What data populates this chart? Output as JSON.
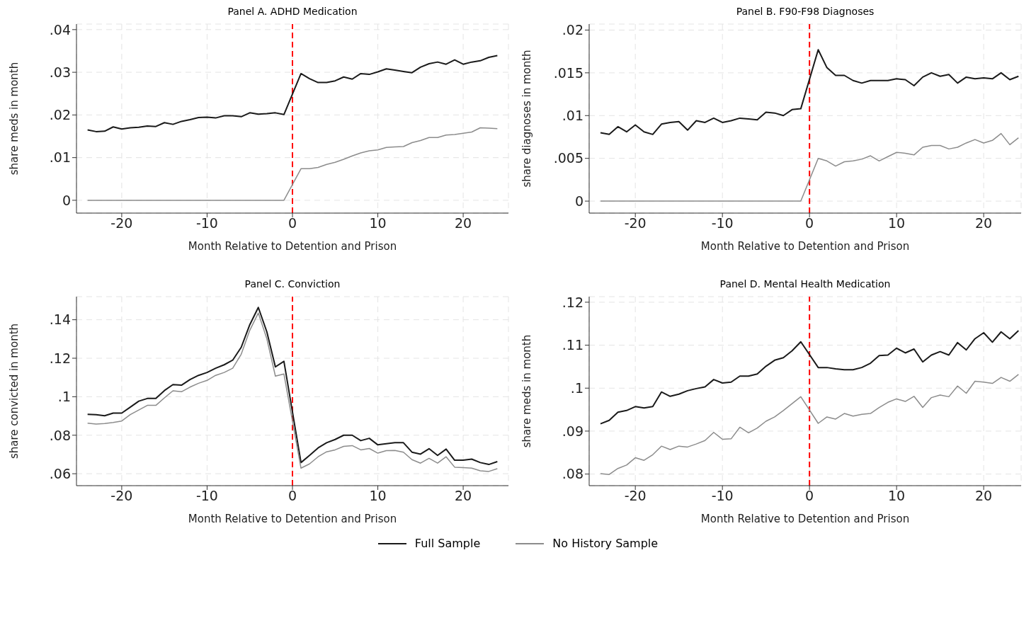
{
  "chart_data": [
    {
      "type": "line",
      "title": "Panel A. ADHD Medication",
      "xlabel": "Month Relative to Detention and Prison",
      "ylabel": "share meds in month",
      "x": [
        -24,
        -23,
        -22,
        -21,
        -20,
        -19,
        -18,
        -17,
        -16,
        -15,
        -14,
        -13,
        -12,
        -11,
        -10,
        -9,
        -8,
        -7,
        -6,
        -5,
        -4,
        -3,
        -2,
        -1,
        1,
        2,
        3,
        4,
        5,
        6,
        7,
        8,
        9,
        10,
        11,
        12,
        13,
        14,
        15,
        16,
        17,
        18,
        19,
        20,
        21,
        22,
        23,
        24
      ],
      "series": [
        {
          "name": "Full Sample",
          "color": "#1a1a1a",
          "values": [
            0.0165,
            0.0161,
            0.0162,
            0.0172,
            0.0167,
            0.017,
            0.0171,
            0.0174,
            0.0173,
            0.0182,
            0.0178,
            0.0185,
            0.0189,
            0.0194,
            0.0195,
            0.0193,
            0.0198,
            0.0198,
            0.0196,
            0.0205,
            0.0202,
            0.0203,
            0.0205,
            0.0201,
            0.0297,
            0.0285,
            0.0276,
            0.0276,
            0.028,
            0.0289,
            0.0284,
            0.0297,
            0.0295,
            0.0301,
            0.0308,
            0.0305,
            0.0302,
            0.0299,
            0.0312,
            0.032,
            0.0324,
            0.0319,
            0.0329,
            0.0319,
            0.0324,
            0.0327,
            0.0335,
            0.0339
          ]
        },
        {
          "name": "No History Sample",
          "color": "#8c8c8c",
          "values": [
            0,
            0,
            0,
            0,
            0,
            0,
            0,
            0,
            0,
            0,
            0,
            0,
            0,
            0,
            0,
            0,
            0,
            0,
            0,
            0,
            0,
            0,
            0,
            0,
            0.0074,
            0.0074,
            0.0077,
            0.0084,
            0.0089,
            0.0096,
            0.0104,
            0.0111,
            0.0116,
            0.0118,
            0.0124,
            0.0125,
            0.0126,
            0.0135,
            0.014,
            0.0147,
            0.0147,
            0.0153,
            0.0154,
            0.0157,
            0.016,
            0.017,
            0.0169,
            0.0168
          ]
        }
      ],
      "xlim": [
        -25.3,
        25.3
      ],
      "xticks": [
        -20,
        -10,
        0,
        10,
        20
      ],
      "ylim": [
        -0.003,
        0.0413
      ],
      "yticks": [
        {
          "value": 0,
          "label": "0"
        },
        {
          "value": 0.01,
          "label": ".01"
        },
        {
          "value": 0.02,
          "label": ".02"
        },
        {
          "value": 0.03,
          "label": ".03"
        },
        {
          "value": 0.04,
          "label": ".04"
        }
      ],
      "grid": true,
      "marker": "none",
      "legend": "bottom",
      "ref_lines": [
        {
          "axis": "x",
          "value": 0,
          "color": "#ff0000",
          "line_style": "dashed"
        }
      ]
    },
    {
      "type": "line",
      "title": "Panel B. F90-F98 Diagnoses",
      "xlabel": "Month Relative to Detention and Prison",
      "ylabel": "share diagnoses in month",
      "x": [
        -24,
        -23,
        -22,
        -21,
        -20,
        -19,
        -18,
        -17,
        -16,
        -15,
        -14,
        -13,
        -12,
        -11,
        -10,
        -9,
        -8,
        -7,
        -6,
        -5,
        -4,
        -3,
        -2,
        -1,
        1,
        2,
        3,
        4,
        5,
        6,
        7,
        8,
        9,
        10,
        11,
        12,
        13,
        14,
        15,
        16,
        17,
        18,
        19,
        20,
        21,
        22,
        23,
        24
      ],
      "series": [
        {
          "color": "#1a1a1a",
          "values": [
            0.008,
            0.0078,
            0.0087,
            0.0081,
            0.0089,
            0.0081,
            0.0078,
            0.009,
            0.0092,
            0.0093,
            0.0083,
            0.0094,
            0.0092,
            0.0097,
            0.0092,
            0.0094,
            0.0097,
            0.0096,
            0.0095,
            0.0104,
            0.0103,
            0.01,
            0.0107,
            0.0108,
            0.0177,
            0.0156,
            0.0147,
            0.0147,
            0.0141,
            0.0138,
            0.0141,
            0.0141,
            0.0141,
            0.0143,
            0.0142,
            0.0135,
            0.0145,
            0.015,
            0.0146,
            0.0148,
            0.0138,
            0.0145,
            0.0143,
            0.0144,
            0.0143,
            0.015,
            0.0142,
            0.0146
          ]
        },
        {
          "color": "#8c8c8c",
          "values": [
            0,
            0,
            0,
            0,
            0,
            0,
            0,
            0,
            0,
            0,
            0,
            0,
            0,
            0,
            0,
            0,
            0,
            0,
            0,
            0,
            0,
            0,
            0,
            0,
            0.005,
            0.0047,
            0.0041,
            0.0046,
            0.0047,
            0.0049,
            0.0053,
            0.0047,
            0.0052,
            0.0057,
            0.0056,
            0.0054,
            0.0063,
            0.0065,
            0.0065,
            0.0061,
            0.0063,
            0.0068,
            0.0072,
            0.0068,
            0.0071,
            0.0079,
            0.0066,
            0.0074
          ]
        }
      ],
      "xlim": [
        -25.3,
        24.3
      ],
      "xticks": [
        -20,
        -10,
        0,
        10,
        20
      ],
      "ylim": [
        -0.0014,
        0.0207
      ],
      "yticks": [
        {
          "value": 0,
          "label": "0"
        },
        {
          "value": 0.005,
          "label": ".005"
        },
        {
          "value": 0.01,
          "label": ".01"
        },
        {
          "value": 0.015,
          "label": ".015"
        },
        {
          "value": 0.02,
          "label": ".02"
        }
      ],
      "grid": true,
      "marker": "none",
      "ref_lines": [
        {
          "axis": "x",
          "value": 0,
          "color": "#ff0000",
          "line_style": "dashed"
        }
      ]
    },
    {
      "type": "line",
      "title": "Panel C. Conviction",
      "xlabel": "Month Relative to Detention and Prison",
      "ylabel": "share convicted in month",
      "x": [
        -24,
        -23,
        -22,
        -21,
        -20,
        -19,
        -18,
        -17,
        -16,
        -15,
        -14,
        -13,
        -12,
        -11,
        -10,
        -9,
        -8,
        -7,
        -6,
        -5,
        -4,
        -3,
        -2,
        -1,
        1,
        2,
        3,
        4,
        5,
        6,
        7,
        8,
        9,
        10,
        11,
        12,
        13,
        14,
        15,
        16,
        17,
        18,
        19,
        20,
        21,
        22,
        23,
        24
      ],
      "series": [
        {
          "color": "#1a1a1a",
          "values": [
            0.0909,
            0.0907,
            0.0901,
            0.0915,
            0.0915,
            0.0946,
            0.0977,
            0.0991,
            0.0991,
            0.1032,
            0.1063,
            0.106,
            0.1089,
            0.1111,
            0.1126,
            0.1148,
            0.1166,
            0.119,
            0.1257,
            0.1374,
            0.1464,
            0.1337,
            0.1155,
            0.1184,
            0.0658,
            0.0695,
            0.0734,
            0.0761,
            0.0778,
            0.08,
            0.08,
            0.0772,
            0.0784,
            0.075,
            0.0756,
            0.0761,
            0.0761,
            0.0712,
            0.0702,
            0.073,
            0.0695,
            0.0728,
            0.067,
            0.067,
            0.0676,
            0.0658,
            0.0648,
            0.0663
          ]
        },
        {
          "color": "#8c8c8c",
          "values": [
            0.0863,
            0.0858,
            0.0861,
            0.0866,
            0.0874,
            0.0907,
            0.0931,
            0.0955,
            0.0955,
            0.0994,
            0.1031,
            0.1026,
            0.105,
            0.107,
            0.1085,
            0.1111,
            0.1126,
            0.1148,
            0.1221,
            0.1345,
            0.1435,
            0.1301,
            0.1107,
            0.1118,
            0.0629,
            0.0651,
            0.0688,
            0.0714,
            0.0724,
            0.0742,
            0.0746,
            0.0724,
            0.0731,
            0.0707,
            0.072,
            0.0721,
            0.0712,
            0.0673,
            0.0655,
            0.068,
            0.0655,
            0.0688,
            0.0634,
            0.0632,
            0.0629,
            0.0615,
            0.0612,
            0.0626
          ]
        }
      ],
      "xlim": [
        -25.3,
        25.3
      ],
      "xticks": [
        -20,
        -10,
        0,
        10,
        20
      ],
      "ylim": [
        0.0538,
        0.152
      ],
      "yticks": [
        {
          "value": 0.06,
          "label": ".06"
        },
        {
          "value": 0.08,
          "label": ".08"
        },
        {
          "value": 0.1,
          "label": ".1"
        },
        {
          "value": 0.12,
          "label": ".12"
        },
        {
          "value": 0.14,
          "label": ".14"
        }
      ],
      "grid": true,
      "marker": "none",
      "ref_lines": [
        {
          "axis": "x",
          "value": 0,
          "color": "#ff0000",
          "line_style": "dashed"
        }
      ]
    },
    {
      "type": "line",
      "title": "Panel D. Mental Health Medication",
      "xlabel": "Month Relative to Detention and Prison",
      "ylabel": "share meds in month",
      "x": [
        -24,
        -23,
        -22,
        -21,
        -20,
        -19,
        -18,
        -17,
        -16,
        -15,
        -14,
        -13,
        -12,
        -11,
        -10,
        -9,
        -8,
        -7,
        -6,
        -5,
        -4,
        -3,
        -2,
        -1,
        1,
        2,
        3,
        4,
        5,
        6,
        7,
        8,
        9,
        10,
        11,
        12,
        13,
        14,
        15,
        16,
        17,
        18,
        19,
        20,
        21,
        22,
        23,
        24
      ],
      "series": [
        {
          "color": "#1a1a1a",
          "values": [
            0.0917,
            0.0925,
            0.0944,
            0.0948,
            0.0957,
            0.0954,
            0.0957,
            0.0991,
            0.0981,
            0.0986,
            0.0994,
            0.0999,
            0.1003,
            0.102,
            0.1012,
            0.1014,
            0.1028,
            0.1028,
            0.1033,
            0.1051,
            0.1065,
            0.1071,
            0.1087,
            0.1108,
            0.1048,
            0.1048,
            0.1045,
            0.1043,
            0.1043,
            0.1048,
            0.1058,
            0.1076,
            0.1077,
            0.1093,
            0.1082,
            0.1091,
            0.1061,
            0.1077,
            0.1085,
            0.1077,
            0.1106,
            0.1089,
            0.1115,
            0.1129,
            0.1107,
            0.1131,
            0.1115,
            0.1134
          ]
        },
        {
          "color": "#8c8c8c",
          "values": [
            0.0801,
            0.0799,
            0.0813,
            0.0821,
            0.0838,
            0.0832,
            0.0845,
            0.0865,
            0.0857,
            0.0865,
            0.0863,
            0.087,
            0.0878,
            0.0897,
            0.0881,
            0.0882,
            0.0909,
            0.0896,
            0.0907,
            0.0923,
            0.0933,
            0.0948,
            0.0964,
            0.098,
            0.0918,
            0.0933,
            0.0928,
            0.0941,
            0.0935,
            0.0939,
            0.0941,
            0.0955,
            0.0967,
            0.0975,
            0.0969,
            0.0981,
            0.0955,
            0.0978,
            0.0984,
            0.098,
            0.1005,
            0.0988,
            0.1016,
            0.1014,
            0.1011,
            0.1025,
            0.1016,
            0.1032
          ]
        }
      ],
      "xlim": [
        -25.3,
        24.3
      ],
      "xticks": [
        -20,
        -10,
        0,
        10,
        20
      ],
      "ylim": [
        0.0773,
        0.1213
      ],
      "yticks": [
        {
          "value": 0.08,
          "label": ".08"
        },
        {
          "value": 0.09,
          "label": ".09"
        },
        {
          "value": 0.1,
          "label": ".1"
        },
        {
          "value": 0.11,
          "label": ".11"
        },
        {
          "value": 0.12,
          "label": ".12"
        }
      ],
      "grid": true,
      "marker": "none",
      "ref_lines": [
        {
          "axis": "x",
          "value": 0,
          "color": "#ff0000",
          "line_style": "dashed"
        }
      ]
    }
  ]
}
